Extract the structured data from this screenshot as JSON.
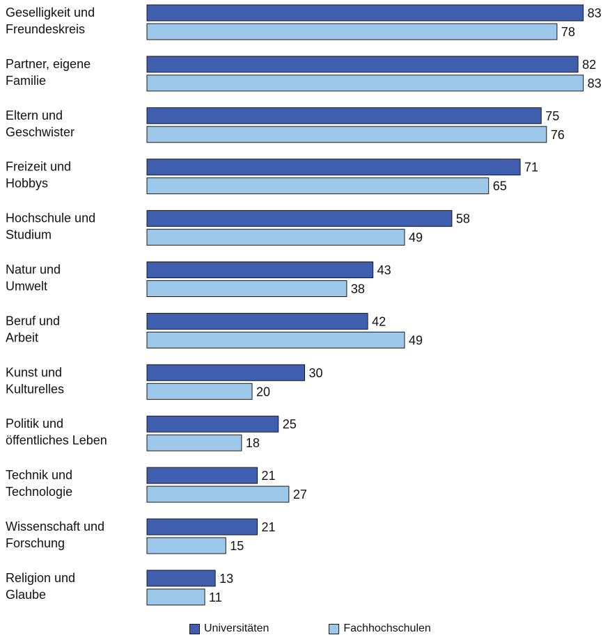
{
  "chart_data": {
    "type": "bar",
    "orientation": "horizontal",
    "categories": [
      [
        "Geselligkeit und",
        "Freundeskreis"
      ],
      [
        "Partner, eigene",
        "Familie"
      ],
      [
        "Eltern und",
        "Geschwister"
      ],
      [
        "Freizeit und",
        "Hobbys"
      ],
      [
        "Hochschule und",
        "Studium"
      ],
      [
        "Natur und",
        "Umwelt"
      ],
      [
        "Beruf und",
        "Arbeit"
      ],
      [
        "Kunst und",
        "Kulturelles"
      ],
      [
        "Politik und",
        "öffentliches Leben"
      ],
      [
        "Technik und",
        "Technologie"
      ],
      [
        "Wissenschaft und",
        "Forschung"
      ],
      [
        "Religion und",
        "Glaube"
      ]
    ],
    "series": [
      {
        "name": "Universitäten",
        "color": "#3f5fae",
        "values": [
          83,
          82,
          75,
          71,
          58,
          43,
          42,
          30,
          25,
          21,
          21,
          13
        ]
      },
      {
        "name": "Fachhochschulen",
        "color": "#9ec8ea",
        "values": [
          78,
          83,
          76,
          65,
          49,
          38,
          49,
          20,
          18,
          27,
          15,
          11
        ]
      }
    ],
    "xlim": [
      0,
      100
    ],
    "grid": false,
    "legend_position": "bottom"
  }
}
